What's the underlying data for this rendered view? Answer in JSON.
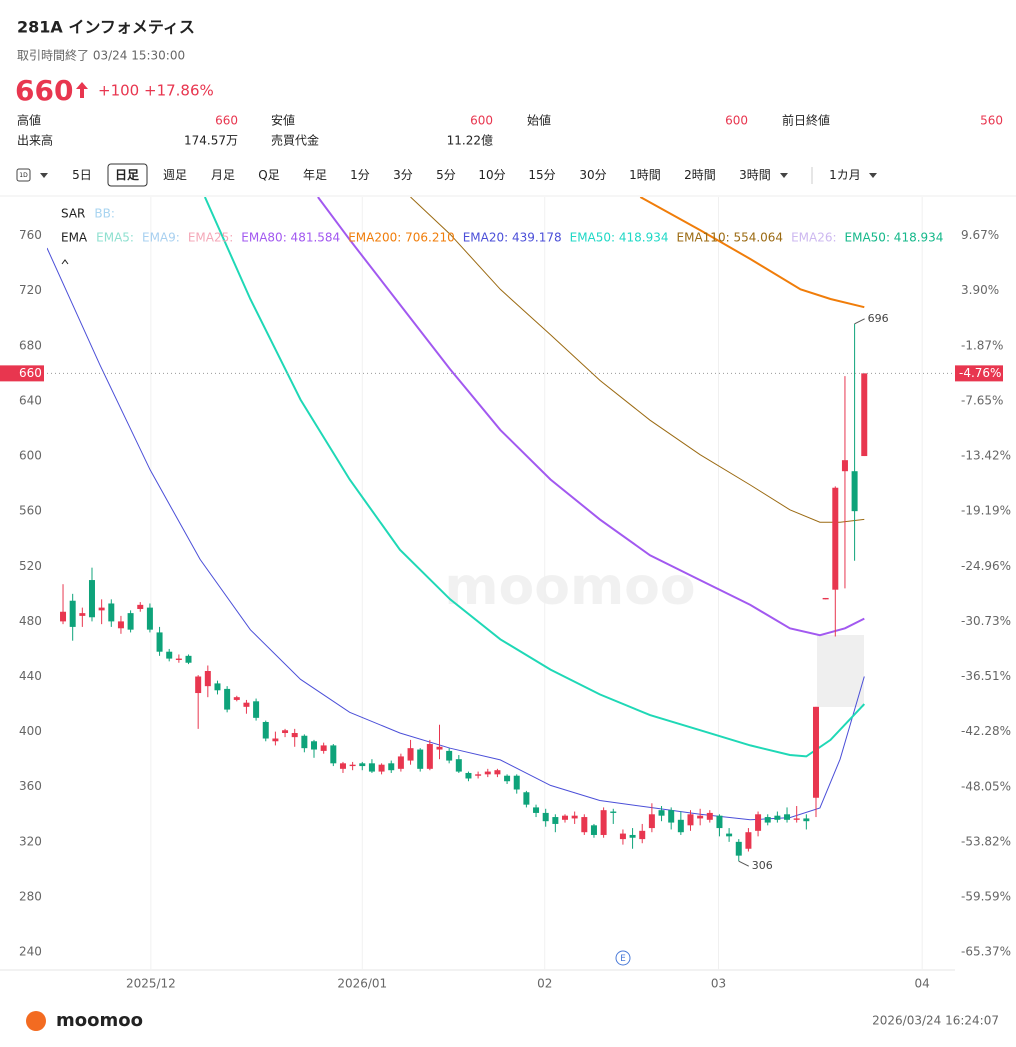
{
  "header": {
    "title": "281A インフォメティス",
    "status": "取引時間終了 03/24 15:30:00",
    "price": "660",
    "change": "+100",
    "change_pct": "+17.86%",
    "stats": [
      {
        "label": "高値",
        "value": "660"
      },
      {
        "label": "安値",
        "value": "600"
      },
      {
        "label": "始値",
        "value": "600"
      },
      {
        "label": "前日終値",
        "value": "560"
      },
      {
        "label": "出来高",
        "value": "174.57万"
      },
      {
        "label": "売買代金",
        "value": "11.22億"
      }
    ]
  },
  "toolbar": {
    "icon": "1D",
    "items": [
      "5日",
      "日足",
      "週足",
      "月足",
      "Q足",
      "年足",
      "1分",
      "3分",
      "5分",
      "10分",
      "15分",
      "30分",
      "1時間",
      "2時間",
      "3時間",
      "1カ月"
    ]
  },
  "chart_data": {
    "type": "candlestick",
    "categories": [
      null,
      null,
      null,
      null,
      null,
      null,
      null,
      null,
      null,
      null,
      null,
      null,
      null,
      null,
      null,
      null,
      null,
      null,
      null,
      null,
      null,
      null,
      null,
      null,
      null,
      null,
      null,
      null,
      null,
      null,
      null,
      null,
      null,
      null,
      null,
      null,
      null,
      null,
      null,
      null,
      null,
      null,
      null,
      null,
      null,
      null,
      null,
      null,
      null,
      null,
      null,
      null,
      null,
      null,
      null,
      null,
      null,
      null,
      null,
      null,
      null,
      null,
      null,
      null,
      null,
      null,
      null,
      null,
      null,
      null,
      null,
      null,
      null,
      null,
      null,
      null,
      null,
      null,
      null,
      null,
      null,
      null,
      null,
      null
    ],
    "open": [
      480,
      495,
      484,
      510,
      488,
      493,
      475,
      486,
      489,
      490,
      472,
      458,
      452,
      455,
      428,
      433,
      435,
      431,
      423,
      418,
      422,
      407,
      393,
      399,
      396,
      397,
      393,
      386,
      390,
      373,
      375,
      377,
      377,
      371,
      377,
      373,
      379,
      387,
      373,
      387,
      386,
      380,
      370,
      368,
      369,
      369,
      368,
      368,
      356,
      345,
      341,
      338,
      336,
      337,
      327,
      332,
      325,
      342,
      322,
      325,
      322,
      330,
      343,
      343,
      336,
      332,
      337,
      336,
      339,
      326,
      320,
      315,
      328,
      338,
      339,
      340,
      336,
      337,
      352,
      496,
      503,
      589,
      589,
      600
    ],
    "high": [
      507,
      500,
      490,
      519,
      496,
      496,
      484,
      488,
      494,
      493,
      476,
      460,
      456,
      456,
      441,
      448,
      437,
      433,
      426,
      423,
      424,
      408,
      400,
      402,
      402,
      398,
      394,
      392,
      391,
      378,
      378,
      378,
      380,
      377,
      379,
      384,
      394,
      388,
      394,
      405,
      388,
      383,
      371,
      371,
      373,
      373,
      369,
      369,
      357,
      347,
      344,
      340,
      340,
      342,
      340,
      333,
      345,
      344,
      329,
      330,
      333,
      348,
      346,
      345,
      342,
      343,
      344,
      343,
      340,
      330,
      322,
      330,
      342,
      340,
      342,
      345,
      346,
      340,
      418,
      497,
      578,
      658,
      696,
      660
    ],
    "low": [
      478,
      466,
      476,
      480,
      478,
      476,
      471,
      472,
      487,
      472,
      455,
      451,
      450,
      449,
      402,
      425,
      427,
      414,
      422,
      413,
      408,
      393,
      390,
      396,
      389,
      385,
      381,
      384,
      375,
      370,
      372,
      372,
      370,
      369,
      370,
      371,
      376,
      371,
      372,
      380,
      377,
      370,
      364,
      366,
      367,
      367,
      362,
      355,
      345,
      338,
      331,
      327,
      334,
      333,
      325,
      323,
      323,
      333,
      318,
      315,
      319,
      327,
      335,
      329,
      325,
      328,
      332,
      334,
      324,
      320,
      306,
      313,
      324,
      332,
      334,
      334,
      334,
      329,
      338,
      496,
      469,
      504,
      524,
      600
    ],
    "close": [
      487,
      476,
      486,
      483,
      490,
      480,
      480,
      474,
      492,
      474,
      458,
      453,
      453,
      450,
      440,
      444,
      430,
      416,
      425,
      421,
      410,
      395,
      395,
      401,
      399,
      388,
      387,
      390,
      377,
      377,
      376,
      375,
      371,
      376,
      372,
      382,
      388,
      373,
      391,
      389,
      379,
      371,
      366,
      369,
      371,
      372,
      364,
      358,
      347,
      341,
      335,
      333,
      339,
      339,
      338,
      325,
      343,
      341,
      326,
      323,
      328,
      340,
      339,
      334,
      327,
      340,
      339,
      341,
      330,
      324,
      310,
      327,
      340,
      334,
      336,
      336,
      337,
      335,
      418,
      497,
      577,
      597,
      560,
      660
    ],
    "up_color": "#e8364f",
    "down_color": "#0ea37a",
    "ylim": [
      227,
      788
    ],
    "yticks": [
      240,
      280,
      320,
      360,
      400,
      440,
      480,
      520,
      560,
      600,
      640,
      680,
      720,
      760
    ],
    "y2lim": [
      -67.24,
      13.71
    ],
    "y2ticks": [
      {
        "value": 9.67,
        "label": "9.67%"
      },
      {
        "value": 3.9,
        "label": "3.90%"
      },
      {
        "value": -1.87,
        "label": "-1.87%"
      },
      {
        "value": -7.65,
        "label": "-7.65%"
      },
      {
        "value": -13.42,
        "label": "-13.42%"
      },
      {
        "value": -19.19,
        "label": "-19.19%"
      },
      {
        "value": -24.96,
        "label": "-24.96%"
      },
      {
        "value": -30.73,
        "label": "-30.73%"
      },
      {
        "value": -36.51,
        "label": "-36.51%"
      },
      {
        "value": -42.28,
        "label": "-42.28%"
      },
      {
        "value": -48.05,
        "label": "-48.05%"
      },
      {
        "value": -53.82,
        "label": "-53.82%"
      },
      {
        "value": -59.59,
        "label": "-59.59%"
      },
      {
        "value": -65.37,
        "label": "-65.37%"
      }
    ],
    "xlim": [
      -1.66,
      92.4
    ],
    "xticks": [
      {
        "value": 9.1,
        "label": "2025/12"
      },
      {
        "value": 31.0,
        "label": "2026/01"
      },
      {
        "value": 49.9,
        "label": "02"
      },
      {
        "value": 67.9,
        "label": "03"
      },
      {
        "value": 89.0,
        "label": "04"
      }
    ],
    "grid_x": true,
    "last_price_y2": {
      "value": -4.76,
      "label": "-4.76%"
    },
    "lines": [
      {
        "color": "#4b4fd8",
        "width": 1,
        "x": [
          -1.66,
          3.83,
          9.02,
          14.2,
          19.4,
          24.6,
          29.7,
          34.9,
          40.1,
          45.3,
          50.5,
          55.6,
          60.8,
          66.0,
          71.2,
          75.3,
          78.4,
          80.5,
          83
        ],
        "values": [
          751,
          666,
          590,
          525,
          474,
          438,
          414,
          399,
          388,
          379.5,
          361,
          350,
          345,
          340,
          336,
          337.6,
          344.6,
          380,
          440
        ]
      },
      {
        "color": "#1fd8b6",
        "width": 2,
        "x": [
          14.7,
          19.4,
          24.6,
          29.7,
          34.9,
          40.1,
          45.3,
          50.5,
          55.6,
          60.8,
          66.0,
          71.2,
          75.3,
          77.0,
          79.5,
          83
        ],
        "values": [
          788,
          714,
          641,
          583,
          532,
          496,
          467,
          445,
          427,
          412,
          401,
          390,
          383,
          382,
          394,
          420
        ]
      },
      {
        "color": "#a259f0",
        "width": 2,
        "x": [
          26.4,
          29.7,
          34.9,
          40.1,
          45.3,
          50.5,
          55.6,
          60.8,
          66.0,
          71.2,
          75.3,
          78.4,
          81.0,
          83
        ],
        "values": [
          788,
          757,
          710,
          663,
          619,
          583,
          554,
          528,
          510,
          492,
          475,
          470,
          475,
          482
        ]
      },
      {
        "color": "#9b6a12",
        "width": 1,
        "x": [
          36.0,
          40.1,
          45.3,
          50.5,
          55.6,
          60.8,
          66.0,
          71.2,
          75.3,
          78.4,
          80.5,
          83
        ],
        "values": [
          788,
          761,
          721,
          688,
          655,
          626,
          601,
          579,
          561,
          552,
          552,
          554
        ]
      },
      {
        "color": "#f07d0a",
        "width": 2,
        "x": [
          59.8,
          66.0,
          71.2,
          76.4,
          79.5,
          83
        ],
        "values": [
          788,
          764,
          743,
          721,
          714,
          708
        ]
      }
    ],
    "legend_rows": [
      [
        {
          "text": "SAR",
          "color": "#222"
        },
        {
          "text": "BB:",
          "color": "#a8d4f0"
        }
      ],
      [
        {
          "text": "EMA",
          "color": "#222"
        },
        {
          "text": "EMA5:",
          "color": "#8fe0d0"
        },
        {
          "text": "EMA9:",
          "color": "#a8d0f0"
        },
        {
          "text": "EMA25:",
          "color": "#f4a8b8"
        },
        {
          "text": "EMA80: 481.584",
          "color": "#a259f0"
        },
        {
          "text": "EMA200: 706.210",
          "color": "#f07d0a"
        },
        {
          "text": "EMA20: 439.178",
          "color": "#4b4fd8"
        },
        {
          "text": "EMA50: 418.934",
          "color": "#1fd8c6"
        },
        {
          "text": "EMA110: 554.064",
          "color": "#9b6a12"
        },
        {
          "text": "EMA26:",
          "color": "#cdb8f0"
        },
        {
          "text": "EMA50: 418.934",
          "color": "#14b88a"
        }
      ]
    ],
    "event_marker": "E",
    "watermark": "moomoo"
  },
  "footer": {
    "brand": "moomoo",
    "timestamp": "2026/03/24 16:24:07"
  }
}
